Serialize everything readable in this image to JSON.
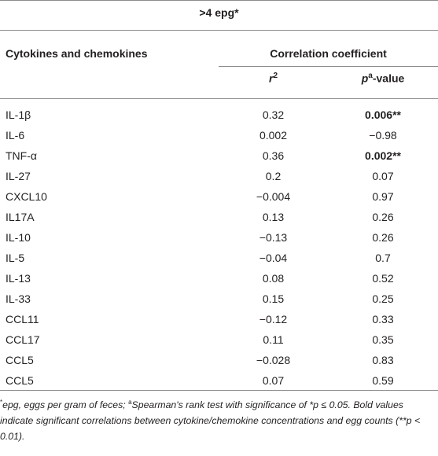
{
  "table": {
    "group_header": ">4 epg*",
    "col_header_left": "Cytokines and chemokines",
    "col_header_right": "Correlation coefficient",
    "sub_r_base": "r",
    "sub_r_sup": "2",
    "sub_p_base": "p",
    "sub_p_sup": "a",
    "sub_p_suffix": "-value",
    "rows": [
      {
        "name": "IL-1β",
        "r2": "0.32",
        "p": "0.006**",
        "bold": true
      },
      {
        "name": "IL-6",
        "r2": "0.002",
        "p": "−0.98",
        "bold": false
      },
      {
        "name": "TNF-α",
        "r2": "0.36",
        "p": "0.002**",
        "bold": true
      },
      {
        "name": "IL-27",
        "r2": "0.2",
        "p": "0.07",
        "bold": false
      },
      {
        "name": "CXCL10",
        "r2": "−0.004",
        "p": "0.97",
        "bold": false
      },
      {
        "name": "IL17A",
        "r2": "0.13",
        "p": "0.26",
        "bold": false
      },
      {
        "name": "IL-10",
        "r2": "−0.13",
        "p": "0.26",
        "bold": false
      },
      {
        "name": "IL-5",
        "r2": "−0.04",
        "p": "0.7",
        "bold": false
      },
      {
        "name": "IL-13",
        "r2": "0.08",
        "p": "0.52",
        "bold": false
      },
      {
        "name": "IL-33",
        "r2": "0.15",
        "p": "0.25",
        "bold": false
      },
      {
        "name": "CCL11",
        "r2": "−0.12",
        "p": "0.33",
        "bold": false
      },
      {
        "name": "CCL17",
        "r2": "0.11",
        "p": "0.35",
        "bold": false
      },
      {
        "name": "CCL5",
        "r2": "−0.028",
        "p": "0.83",
        "bold": false
      },
      {
        "name": "CCL5",
        "r2": "0.07",
        "p": "0.59",
        "bold": false
      }
    ]
  },
  "footnote": {
    "star": "*",
    "part1": "epg, eggs per gram of feces; ",
    "a_sup": "a",
    "part2": "Spearman's rank test with significance of *p ≤ 0.05. Bold values indicate significant correlations between cytokine/chemokine concentrations and egg counts (**p < 0.01)."
  }
}
